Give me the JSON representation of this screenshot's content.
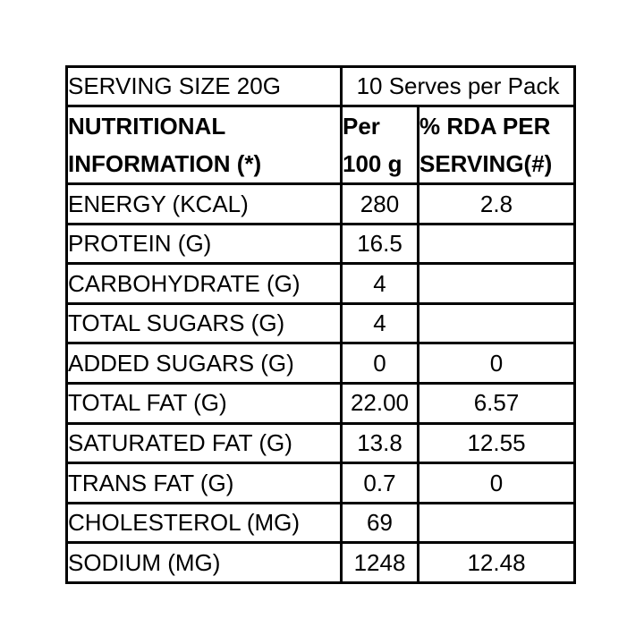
{
  "table": {
    "serving_row": {
      "serving_size": "SERVING SIZE 20G",
      "serves_per_pack": "10 Serves per Pack"
    },
    "header": {
      "col1_line1": "NUTRITIONAL",
      "col1_line2": "INFORMATION (*)",
      "col2_line1": "Per",
      "col2_line2": "100 g",
      "col3_line1": "% RDA PER",
      "col3_line2": "SERVING(#)"
    },
    "rows": [
      {
        "label": "ENERGY (KCAL)",
        "per_100g": "280",
        "rda_per_serving": "2.8"
      },
      {
        "label": "PROTEIN (G)",
        "per_100g": "16.5",
        "rda_per_serving": ""
      },
      {
        "label": "CARBOHYDRATE (G)",
        "per_100g": "4",
        "rda_per_serving": ""
      },
      {
        "label": "TOTAL SUGARS (G)",
        "per_100g": "4",
        "rda_per_serving": ""
      },
      {
        "label": "ADDED SUGARS (G)",
        "per_100g": "0",
        "rda_per_serving": "0"
      },
      {
        "label": "TOTAL FAT (G)",
        "per_100g": "22.00",
        "rda_per_serving": "6.57"
      },
      {
        "label": "SATURATED FAT (G)",
        "per_100g": "13.8",
        "rda_per_serving": "12.55"
      },
      {
        "label": "TRANS FAT (G)",
        "per_100g": "0.7",
        "rda_per_serving": "0"
      },
      {
        "label": "CHOLESTEROL (MG)",
        "per_100g": "69",
        "rda_per_serving": ""
      },
      {
        "label": "SODIUM (MG)",
        "per_100g": "1248",
        "rda_per_serving": "12.48"
      }
    ],
    "colors": {
      "border": "#000000",
      "text": "#000000",
      "background": "#ffffff"
    }
  }
}
